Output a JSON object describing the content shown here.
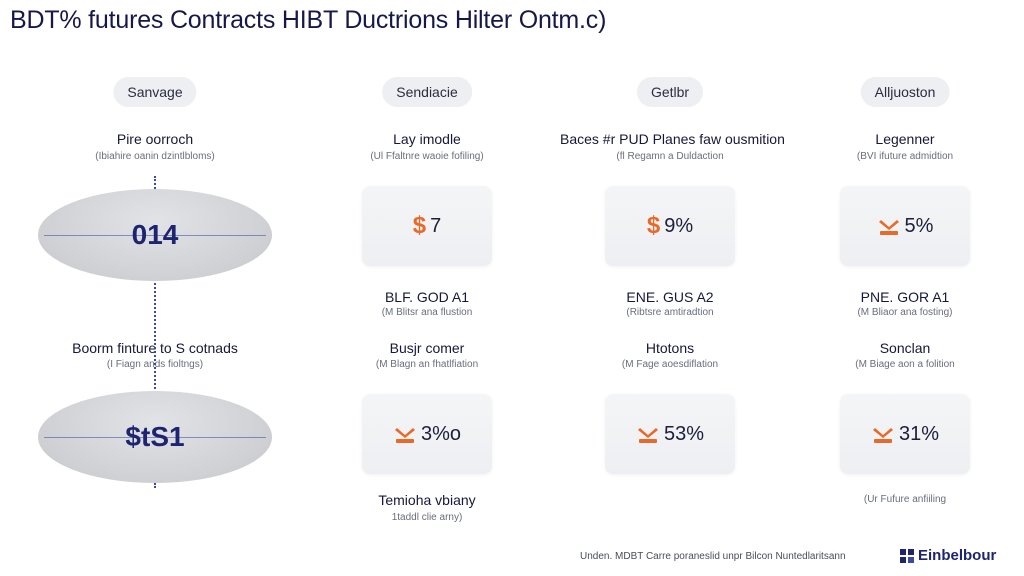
{
  "title": "BDT% futures Contracts HIBT Ductrions Hilter Ontm.c)",
  "accent_color": "#e86a2a",
  "navy_color": "#1d2470",
  "columns": [
    {
      "header": "Sanvage",
      "label1": "Pire oorroch",
      "sub1": "(Ibiahire oanin dzintlbloms)",
      "ellipse1": "014",
      "label2": "Boorm finture to S cotnads",
      "sub2": "(I Fiagn ands fioltngs)",
      "ellipse2": "$tS1"
    },
    {
      "header": "Sendiacie",
      "label1": "Lay imodle",
      "sub1": "(Ul Ffaltnre waoie fofiling)",
      "tile1_icon": "dollar-icon",
      "tile1": "7",
      "label2": "BLF. GOD A1",
      "sub2": "(M Blitsr ana flustion",
      "label3": "Busjr comer",
      "sub3": "(M Blagn an fhatlfiation",
      "tile2_icon": "ship-icon",
      "tile2": "3%o",
      "label4": "Temioha vbiany",
      "sub4": "1taddl clie arny)"
    },
    {
      "header": "Getlbr",
      "label1": "Baces #r PUD Planes faw ousmition",
      "sub1": "(fl Regamn a Duldaction",
      "tile1_icon": "dollar-icon",
      "tile1": "9%",
      "label2": "ENE. GUS A2",
      "sub2": "(Ribtsre amtiradtion",
      "label3": "Htotons",
      "sub3": "(M Fage aoesdiflation",
      "tile2_icon": "ship-icon",
      "tile2": "53%"
    },
    {
      "header": "Alljuoston",
      "label1": "Legenner",
      "sub1": "(BVI ifuture admidtion",
      "tile1_icon": "ship-icon",
      "tile1": "5%",
      "label2": "PNE. GOR A1",
      "sub2": "(M Bliaor ana fosting)",
      "label3": "Sonclan",
      "sub3": "(M Biage aon a folition",
      "tile2_icon": "ship-icon",
      "tile2": "31%",
      "sub4": "(Ur Fufure anfiiling"
    }
  ],
  "footer": {
    "note": "Unden. MDBT Carre poraneslid unpr Bilcon Nuntedlaritsann",
    "brand": "Einbelbour",
    "brand_icon": "brand-icon"
  }
}
